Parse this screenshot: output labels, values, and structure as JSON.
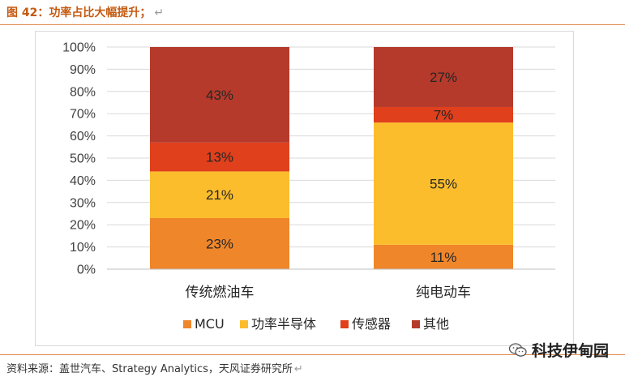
{
  "figure": {
    "title": "图 42：功率占比大幅提升；",
    "return_mark": "↵",
    "source": "资料来源：盖世汽车、Strategy Analytics，天风证券研究所",
    "watermark": "科技伊甸园"
  },
  "chart_data": {
    "type": "bar",
    "stacked": true,
    "categories": [
      "传统燃油车",
      "纯电动车"
    ],
    "series": [
      {
        "name": "MCU",
        "values": [
          23,
          11
        ],
        "color": "#f0862a"
      },
      {
        "name": "功率半导体",
        "values": [
          21,
          55
        ],
        "color": "#fbbd2c"
      },
      {
        "name": "传感器",
        "values": [
          13,
          7
        ],
        "color": "#e0401c"
      },
      {
        "name": "其他",
        "values": [
          43,
          27
        ],
        "color": "#b53a2b"
      }
    ],
    "value_suffix": "%",
    "ylim": [
      0,
      100
    ],
    "yticks": [
      "0%",
      "10%",
      "20%",
      "30%",
      "40%",
      "50%",
      "60%",
      "70%",
      "80%",
      "90%",
      "100%"
    ],
    "grid": true,
    "legend_position": "bottom",
    "title": "",
    "xlabel": "",
    "ylabel": ""
  }
}
